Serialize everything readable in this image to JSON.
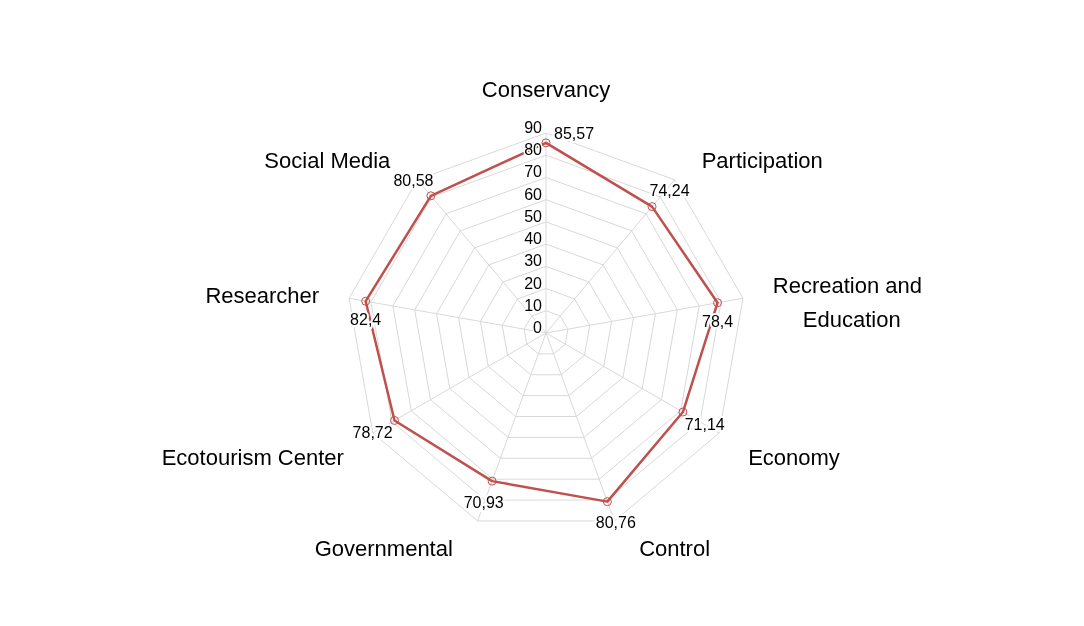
{
  "chart_data": {
    "type": "radar",
    "categories": [
      "Conservancy",
      "Participation",
      "Recreation and Education",
      "Economy",
      "Control",
      "Governmental",
      "Ecotourism Center",
      "Researcher",
      "Social Media"
    ],
    "series": [
      {
        "color": "#c0504d",
        "values": [
          85.57,
          74.24,
          78.4,
          71.14,
          80.76,
          70.93,
          78.72,
          82.4,
          80.58
        ],
        "value_labels": [
          "85,57",
          "74,24",
          "78,4",
          "71,14",
          "80,76",
          "70,93",
          "78,72",
          "82,4",
          "80,58"
        ]
      }
    ],
    "ylim": [
      0,
      90
    ],
    "yticks": [
      0,
      10,
      20,
      30,
      40,
      50,
      60,
      70,
      80,
      90
    ],
    "grid": true,
    "marker": "circle"
  }
}
